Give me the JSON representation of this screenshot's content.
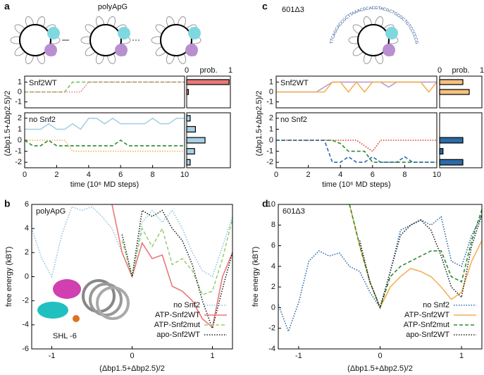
{
  "figure": {
    "panel_labels": [
      "a",
      "b",
      "c",
      "d"
    ],
    "diagram_a_title": "polyApG",
    "diagram_c_title": "601Δ3",
    "diagram_c_sequence": "TTCAGCACCGCTTAAACGCACGTACGCTGCGCTGTCCCCCGCGTTTTAACCGCCAAGGGGATTACT"
  },
  "chart_data": [
    {
      "type": "line",
      "annotation": "Snf2WT",
      "x": [
        0,
        0.5,
        1,
        1.5,
        2,
        2.5,
        3,
        3.5,
        4,
        4.5,
        5,
        5.5,
        6,
        6.5,
        7,
        7.5,
        8,
        8.5,
        9,
        9.5,
        10
      ],
      "xlim": [
        0,
        10
      ],
      "ylim": [
        -1.6,
        1.6
      ],
      "yticks": [
        -1,
        0,
        1
      ],
      "series": [
        {
          "color": "#7cc05a",
          "dash": "dashed",
          "values": [
            0,
            0,
            0,
            0,
            0,
            0,
            1,
            1,
            1,
            1,
            1,
            1,
            1,
            1,
            1,
            1,
            1,
            1,
            1,
            1,
            1
          ]
        },
        {
          "color": "#e8787a",
          "dash": "dotted",
          "values": [
            0,
            0,
            0,
            0,
            0,
            0,
            0,
            0,
            1,
            1,
            1,
            1,
            1,
            1,
            1,
            1,
            1,
            1,
            1,
            1,
            1
          ]
        }
      ]
    },
    {
      "type": "barh",
      "title": "prob.",
      "y": [
        1,
        0
      ],
      "values": [
        0.97,
        0.04
      ],
      "color": "#e8787a",
      "xlim": [
        0,
        1
      ],
      "xticks": [
        0,
        1
      ],
      "ylim": [
        -1.6,
        1.6
      ]
    },
    {
      "type": "line",
      "annotation": "no Snf2",
      "xlabel": "time (10⁶ MD steps)",
      "ylabel": "(Δbp1.5+Δbp2.5)/2",
      "x": [
        0,
        0.5,
        1,
        1.5,
        2,
        2.5,
        3,
        3.5,
        4,
        4.5,
        5,
        5.5,
        6,
        6.5,
        7,
        7.5,
        8,
        8.5,
        9,
        9.5,
        10
      ],
      "xlim": [
        0,
        10
      ],
      "xticks": [
        0,
        2,
        4,
        6,
        8,
        10
      ],
      "ylim": [
        -2.5,
        2.5
      ],
      "yticks": [
        -2,
        -1,
        0,
        1,
        2
      ],
      "series": [
        {
          "color": "#a8d0e6",
          "dash": "solid",
          "values": [
            1,
            1,
            1,
            1.5,
            1,
            1,
            1.5,
            1,
            2,
            2,
            1.5,
            2,
            1.5,
            1.5,
            1.5,
            1.5,
            2,
            1.5,
            1.5,
            2,
            2
          ]
        },
        {
          "color": "#f4b055",
          "dash": "dotted",
          "values": [
            0,
            0,
            0,
            0,
            0,
            0,
            -1,
            -1,
            -1,
            -1,
            -1,
            -1,
            -1,
            -1,
            -1,
            -1,
            -1,
            -1,
            -1,
            -1,
            -1
          ]
        },
        {
          "color": "#2e8b2e",
          "dash": "dashed",
          "values": [
            0,
            -0.5,
            -0.5,
            0,
            -0.5,
            -0.5,
            -0.5,
            -0.5,
            -0.5,
            -0.5,
            -0.5,
            -0.5,
            0,
            -0.5,
            -0.5,
            -0.5,
            -0.5,
            -0.5,
            -0.5,
            -0.5,
            -0.5
          ]
        }
      ]
    },
    {
      "type": "barh",
      "y": [
        2,
        1,
        0,
        -1,
        -2
      ],
      "values": [
        0.08,
        0.2,
        0.42,
        0.18,
        0.08
      ],
      "color": "#a8d0e6",
      "xlim": [
        0,
        1
      ],
      "ylim": [
        -2.5,
        2.5
      ]
    },
    {
      "type": "line",
      "annotation": "Snf2WT",
      "x": [
        0,
        0.5,
        1,
        1.5,
        2,
        2.5,
        3,
        3.5,
        4,
        4.5,
        5,
        5.5,
        6,
        6.5,
        7,
        7.5,
        8,
        8.5,
        9,
        9.5,
        10
      ],
      "xlim": [
        0,
        10
      ],
      "ylim": [
        -1.6,
        1.6
      ],
      "yticks": [
        -1,
        0,
        1
      ],
      "series": [
        {
          "color": "#b99bd0",
          "dash": "solid",
          "values": [
            0,
            0,
            0,
            0,
            0,
            0,
            0.5,
            1,
            1,
            1,
            1,
            1,
            1,
            1,
            0.5,
            1,
            1,
            1,
            1,
            1,
            1
          ]
        },
        {
          "color": "#f4b055",
          "dash": "solid",
          "values": [
            0,
            0,
            0,
            0,
            0,
            0,
            0,
            1,
            1,
            0,
            1,
            0,
            1,
            1,
            1,
            1,
            1,
            1,
            1,
            0,
            1
          ]
        }
      ]
    },
    {
      "type": "barh",
      "title": "prob.",
      "y": [
        1,
        0
      ],
      "values": [
        0.55,
        0.7
      ],
      "color": "#f5c080",
      "xlim": [
        0,
        1
      ],
      "xticks": [
        0,
        1
      ],
      "ylim": [
        -1.6,
        1.6
      ]
    },
    {
      "type": "line",
      "annotation": "no Snf2",
      "xlabel": "time (10⁶ MD steps)",
      "ylabel": "(Δbp1.5+Δbp2.5)/2",
      "x": [
        0,
        0.5,
        1,
        1.5,
        2,
        2.5,
        3,
        3.5,
        4,
        4.5,
        5,
        5.5,
        6,
        6.5,
        7,
        7.5,
        8,
        8.5,
        9,
        9.5,
        10
      ],
      "xlim": [
        0,
        10
      ],
      "xticks": [
        0,
        2,
        4,
        6,
        8,
        10
      ],
      "ylim": [
        -2.5,
        2.5
      ],
      "yticks": [
        -2,
        -1,
        0,
        1,
        2
      ],
      "series": [
        {
          "color": "#d9342b",
          "dash": "dotted",
          "values": [
            0,
            0,
            0,
            0,
            0,
            0,
            0,
            0,
            0,
            0,
            0,
            -0.5,
            -1,
            0,
            0,
            0,
            0,
            0,
            0,
            0,
            0
          ]
        },
        {
          "color": "#2e8b2e",
          "dash": "dashed",
          "values": [
            0,
            0,
            0,
            0,
            0,
            0,
            0,
            0,
            -0.3,
            -1,
            -1,
            -1,
            -2,
            -2,
            -2,
            -2,
            -2,
            -2,
            -2,
            -2,
            -2
          ]
        },
        {
          "color": "#2c6aa8",
          "dash": "dashed",
          "values": [
            0,
            0,
            0,
            0,
            0,
            0,
            0,
            -2,
            -2,
            -1.5,
            -2,
            -2,
            -1.5,
            -2,
            -2,
            -2,
            -1.5,
            -2,
            -2,
            -2,
            -2
          ]
        }
      ]
    },
    {
      "type": "barh",
      "y": [
        0,
        -1,
        -2
      ],
      "values": [
        0.55,
        0.08,
        0.55
      ],
      "color": "#2c6aa8",
      "xlim": [
        0,
        1
      ],
      "ylim": [
        -2.5,
        2.5
      ]
    },
    {
      "type": "line",
      "annotation": "polyApG",
      "note": "SHL -6",
      "xlabel": "(Δbp1.5+Δbp2.5)/2",
      "ylabel": "free energy (kBT)",
      "legend": "lower right",
      "x": [
        -1.25,
        -1.125,
        -1,
        -0.875,
        -0.75,
        -0.625,
        -0.5,
        -0.375,
        -0.25,
        -0.125,
        0,
        0.125,
        0.25,
        0.375,
        0.5,
        0.625,
        0.75,
        0.875,
        1,
        1.125,
        1.25
      ],
      "xlim": [
        -1.25,
        1.25
      ],
      "xticks": [
        -1,
        0,
        1
      ],
      "ylim": [
        -6,
        6
      ],
      "yticks": [
        -6,
        -4,
        -2,
        0,
        2,
        4,
        6
      ],
      "series": [
        {
          "name": "no Snf2",
          "color": "#8fc3e0",
          "dash": "dotted",
          "values": [
            4,
            1.5,
            0,
            3.5,
            5.8,
            5.5,
            5.8,
            5,
            4,
            2,
            0,
            4.5,
            5.5,
            4.5,
            5.5,
            4,
            2,
            0.5,
            0,
            2.5,
            5
          ]
        },
        {
          "name": "ATP-Snf2WT",
          "color": "#e8787a",
          "dash": "solid",
          "values": [
            null,
            null,
            null,
            null,
            null,
            null,
            null,
            null,
            6,
            2,
            0,
            2.8,
            1.5,
            1.8,
            -0.8,
            -1.2,
            -2,
            -3.5,
            -4.2,
            0,
            2
          ]
        },
        {
          "name": "ATP-Snf2mut",
          "color": "#9ccf7a",
          "dash": "dashed",
          "values": [
            null,
            null,
            null,
            null,
            null,
            null,
            null,
            null,
            null,
            3,
            0,
            4,
            2.5,
            4,
            1,
            1.5,
            0.5,
            -1.5,
            -1.2,
            1.5,
            4.8
          ]
        },
        {
          "name": "apo-Snf2WT",
          "color": "#222222",
          "dash": "dotted",
          "values": [
            null,
            null,
            null,
            null,
            null,
            null,
            null,
            null,
            null,
            3.5,
            0,
            5.5,
            5,
            5.5,
            4,
            3,
            1,
            -2,
            -4.3,
            -1,
            2
          ]
        }
      ]
    },
    {
      "type": "line",
      "annotation": "601Δ3",
      "xlabel": "(Δbp1.5+Δbp2.5)/2",
      "ylabel": "free energy (kBT)",
      "legend": "lower right",
      "x": [
        -1.25,
        -1.125,
        -1,
        -0.875,
        -0.75,
        -0.625,
        -0.5,
        -0.375,
        -0.25,
        -0.125,
        0,
        0.125,
        0.25,
        0.375,
        0.5,
        0.625,
        0.75,
        0.875,
        1,
        1.125,
        1.25
      ],
      "xlim": [
        -1.25,
        1.25
      ],
      "xticks": [
        -1,
        0,
        1
      ],
      "ylim": [
        -4,
        10
      ],
      "yticks": [
        -4,
        -2,
        0,
        2,
        4,
        6,
        8,
        10
      ],
      "series": [
        {
          "name": "no Snf2",
          "color": "#2c6aa8",
          "dash": "dotted",
          "values": [
            0.3,
            -2.3,
            0.5,
            4.5,
            5.5,
            5,
            5.3,
            4,
            3.5,
            1.5,
            0,
            3.5,
            7.5,
            8,
            8.5,
            8,
            8.8,
            4.5,
            4,
            7,
            9
          ]
        },
        {
          "name": "ATP-Snf2WT",
          "color": "#f4b055",
          "dash": "solid",
          "values": [
            null,
            null,
            null,
            null,
            null,
            null,
            null,
            10,
            6,
            2.5,
            0,
            2,
            3,
            3.8,
            3.5,
            3,
            2,
            0.8,
            1.5,
            4.5,
            6.5
          ]
        },
        {
          "name": "ATP-Snf2mut",
          "color": "#2e8b2e",
          "dash": "dashed",
          "values": [
            null,
            null,
            null,
            null,
            null,
            null,
            null,
            10,
            6,
            2.5,
            0,
            3,
            4,
            4.5,
            5,
            5.5,
            5.5,
            3,
            2.5,
            6.5,
            9.5
          ]
        },
        {
          "name": "apo-Snf2WT",
          "color": "#222222",
          "dash": "dotted",
          "values": [
            null,
            null,
            null,
            null,
            null,
            null,
            null,
            null,
            6.5,
            2.5,
            0,
            3.5,
            7,
            8,
            8.5,
            7.5,
            5,
            2,
            1,
            6,
            9
          ]
        }
      ]
    }
  ]
}
